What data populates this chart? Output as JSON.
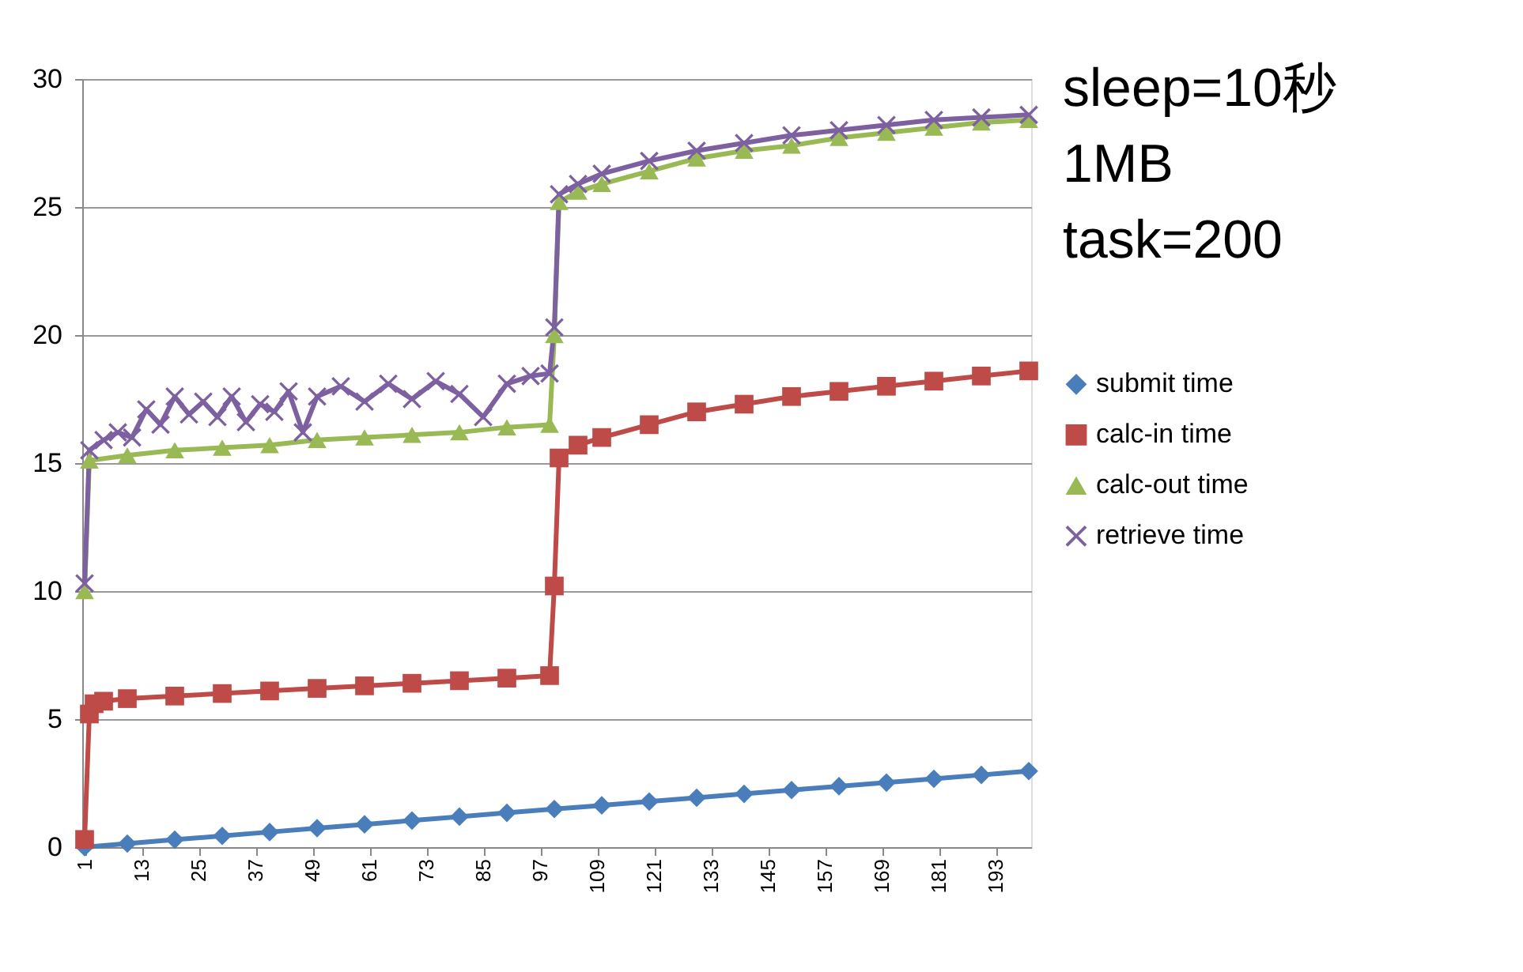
{
  "chart_data": {
    "type": "line",
    "annotations": [
      "sleep=10秒",
      "1MB",
      "task=200"
    ],
    "xlim": [
      0.5,
      200.5
    ],
    "xticks": [
      1,
      13,
      25,
      37,
      49,
      61,
      73,
      85,
      97,
      109,
      121,
      133,
      145,
      157,
      169,
      181,
      193
    ],
    "ylim": [
      0,
      30
    ],
    "yticks": [
      0,
      5,
      10,
      15,
      20,
      25,
      30
    ],
    "grid": "y",
    "legend": "right",
    "line_style": "solid",
    "series": [
      {
        "name": "submit time",
        "color": "#4a7ebb",
        "marker": "diamond",
        "x": [
          1,
          10,
          20,
          30,
          40,
          50,
          60,
          70,
          80,
          90,
          100,
          110,
          120,
          130,
          140,
          150,
          160,
          170,
          180,
          190,
          200
        ],
        "values": [
          0,
          0.14,
          0.29,
          0.44,
          0.59,
          0.74,
          0.89,
          1.04,
          1.19,
          1.34,
          1.49,
          1.63,
          1.78,
          1.93,
          2.08,
          2.23,
          2.38,
          2.52,
          2.67,
          2.82,
          2.97
        ]
      },
      {
        "name": "calc-in time",
        "color": "#be4b48",
        "marker": "square",
        "x": [
          1,
          2,
          3,
          5,
          10,
          20,
          30,
          40,
          50,
          60,
          70,
          80,
          90,
          99,
          100,
          101,
          105,
          110,
          120,
          130,
          140,
          150,
          160,
          170,
          180,
          190,
          200
        ],
        "values": [
          0.3,
          5.2,
          5.6,
          5.7,
          5.8,
          5.9,
          6.0,
          6.1,
          6.2,
          6.3,
          6.4,
          6.5,
          6.6,
          6.7,
          10.2,
          15.2,
          15.7,
          16.0,
          16.5,
          17.0,
          17.3,
          17.6,
          17.8,
          18.0,
          18.2,
          18.4,
          18.6
        ]
      },
      {
        "name": "calc-out time",
        "color": "#98b954",
        "marker": "triangle",
        "x": [
          1,
          2,
          10,
          20,
          30,
          40,
          50,
          60,
          70,
          80,
          90,
          99,
          100,
          101,
          105,
          110,
          120,
          130,
          140,
          150,
          160,
          170,
          180,
          190,
          200
        ],
        "values": [
          10,
          15.1,
          15.3,
          15.5,
          15.6,
          15.7,
          15.9,
          16.0,
          16.1,
          16.2,
          16.4,
          16.5,
          20,
          25.2,
          25.6,
          25.9,
          26.4,
          26.9,
          27.2,
          27.4,
          27.7,
          27.9,
          28.1,
          28.3,
          28.4
        ]
      },
      {
        "name": "retrieve time",
        "color": "#7d60a0",
        "marker": "cross",
        "x": [
          1,
          2,
          5,
          8,
          11,
          14,
          17,
          20,
          23,
          26,
          29,
          32,
          35,
          38,
          41,
          44,
          47,
          50,
          55,
          60,
          65,
          70,
          75,
          80,
          85,
          90,
          95,
          99,
          100,
          101,
          105,
          110,
          120,
          130,
          140,
          150,
          160,
          170,
          180,
          190,
          200
        ],
        "values": [
          10.3,
          15.5,
          15.9,
          16.2,
          16.0,
          17.1,
          16.5,
          17.6,
          16.9,
          17.4,
          16.8,
          17.6,
          16.6,
          17.3,
          17.0,
          17.8,
          16.2,
          17.6,
          18.0,
          17.4,
          18.1,
          17.5,
          18.2,
          17.7,
          16.8,
          18.1,
          18.4,
          18.5,
          20.3,
          25.5,
          25.9,
          26.3,
          26.8,
          27.2,
          27.5,
          27.8,
          28.0,
          28.2,
          28.4,
          28.5,
          28.6
        ]
      }
    ]
  }
}
